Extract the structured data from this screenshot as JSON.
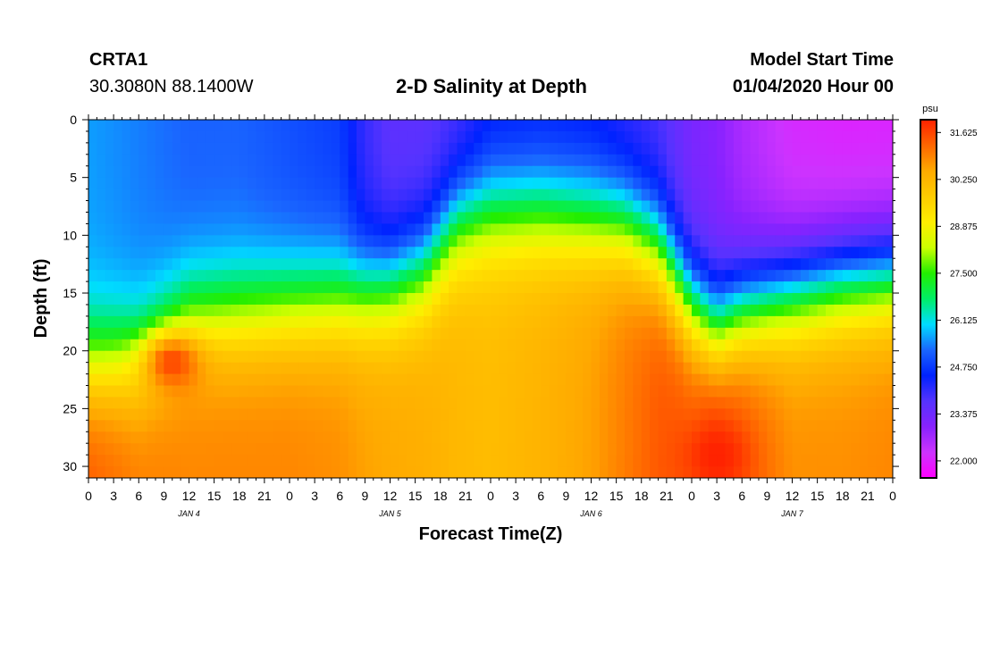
{
  "header": {
    "station_id": "CRTA1",
    "station_coords": "30.3080N 88.1400W",
    "title": "2-D Salinity at Depth",
    "model_start_label": "Model Start Time",
    "model_start_value": "01/04/2020 Hour 00"
  },
  "chart_data": {
    "type": "heatmap",
    "title": "2-D Salinity at Depth",
    "xlabel": "Forecast Time(Z)",
    "ylabel": "Depth (ft)",
    "x_range_hours": [
      0,
      96
    ],
    "y_range_ft": [
      0,
      31
    ],
    "y_inverted": true,
    "x_tick_labels": [
      "0",
      "3",
      "6",
      "9",
      "12",
      "15",
      "18",
      "21",
      "0",
      "3",
      "6",
      "9",
      "12",
      "15",
      "18",
      "21",
      "0",
      "3",
      "6",
      "9",
      "12",
      "15",
      "18",
      "21",
      "0",
      "3",
      "6",
      "9",
      "12",
      "15",
      "18",
      "21",
      "0"
    ],
    "y_ticks": [
      0,
      5,
      10,
      15,
      20,
      25,
      30
    ],
    "y_tick_labels": [
      "0",
      "5",
      "10",
      "15",
      "20",
      "25",
      "30"
    ],
    "day_labels": [
      {
        "label": "JAN 4",
        "hour": 12
      },
      {
        "label": "JAN 5",
        "hour": 36
      },
      {
        "label": "JAN 6",
        "hour": 60
      },
      {
        "label": "JAN 7",
        "hour": 84
      }
    ],
    "colorbar": {
      "unit": "psu",
      "min": 21.5,
      "max": 32.0,
      "tick_values": [
        22.0,
        23.375,
        24.75,
        26.125,
        27.5,
        28.875,
        30.25,
        31.625
      ],
      "tick_labels": [
        "22.000",
        "23.375",
        "24.750",
        "26.125",
        "27.500",
        "28.875",
        "30.250",
        "31.625"
      ],
      "colors": [
        "#ff00ff",
        "#cc33ff",
        "#8822ff",
        "#5533ff",
        "#0022ff",
        "#1a66ff",
        "#00ddff",
        "#00ee66",
        "#22ee00",
        "#ccff00",
        "#ffee00",
        "#ffcc00",
        "#ffaa00",
        "#ff6600",
        "#ff2200"
      ]
    },
    "description_profile": {
      "columns_hours": [
        0,
        6,
        12,
        18,
        24,
        30,
        33,
        36,
        40,
        44,
        48,
        54,
        60,
        64,
        68,
        72,
        75,
        78,
        84,
        90,
        96
      ],
      "halocline_depth_ft": [
        21,
        20.5,
        17,
        16.5,
        16,
        15.5,
        15,
        14.5,
        13,
        9,
        8,
        8,
        8.5,
        9,
        11,
        16,
        18,
        16.5,
        15,
        14,
        13.5
      ],
      "surface_psu": [
        25.6,
        25.4,
        25.2,
        25.2,
        25.0,
        24.8,
        24.0,
        23.6,
        23.6,
        23.8,
        24.3,
        24.4,
        24.3,
        24.0,
        23.8,
        23.2,
        23.0,
        22.6,
        22.1,
        22.0,
        22.0
      ],
      "bottom_psu": [
        31.4,
        31.0,
        30.9,
        30.9,
        30.9,
        30.8,
        30.6,
        30.5,
        30.4,
        30.2,
        30.1,
        30.3,
        30.6,
        31.0,
        31.4,
        31.5,
        31.9,
        31.5,
        30.8,
        30.8,
        30.9
      ]
    },
    "hotspots": [
      {
        "hour": 10,
        "depth_ft": 21,
        "psu": 31.6
      },
      {
        "hour": 75,
        "depth_ft": 29,
        "psu": 32.0
      }
    ]
  }
}
